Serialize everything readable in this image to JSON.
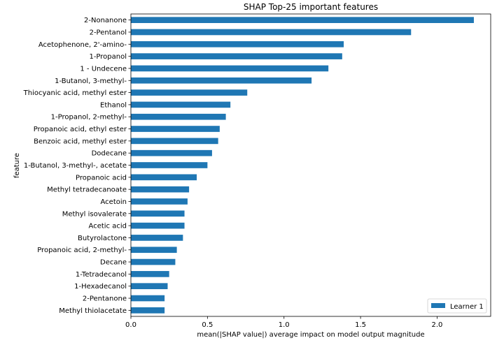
{
  "chart_data": {
    "type": "bar",
    "orientation": "horizontal",
    "title": "SHAP Top-25 important features",
    "xlabel": "mean(|SHAP value|) average impact on model output magnitude",
    "ylabel": "feature",
    "xlim": [
      0,
      2.35
    ],
    "xticks": [
      "0.0",
      "0.5",
      "1.0",
      "1.5",
      "2.0"
    ],
    "xtick_values": [
      0,
      0.5,
      1.0,
      1.5,
      2.0
    ],
    "grid": false,
    "legend_position": "lower-right",
    "color": "#1f77b4",
    "categories": [
      "2-Nonanone",
      "2-Pentanol",
      "Acetophenone, 2'-amino-",
      "1-Propanol",
      "1 - Undecene",
      "1-Butanol, 3-methyl-",
      "Thiocyanic acid, methyl ester",
      "Ethanol",
      "1-Propanol, 2-methyl-",
      "Propanoic acid, ethyl ester",
      "Benzoic acid, methyl ester",
      "Dodecane",
      "1-Butanol, 3-methyl-, acetate",
      "Propanoic acid",
      "Methyl tetradecanoate",
      "Acetoin",
      "Methyl isovalerate",
      "Acetic acid",
      "Butyrolactone",
      "Propanoic acid, 2-methyl-",
      "Decane",
      "1-Tetradecanol",
      "1-Hexadecanol",
      "2-Pentanone",
      "Methyl thiolacetate"
    ],
    "series": [
      {
        "name": "Learner 1",
        "values": [
          2.24,
          1.83,
          1.39,
          1.38,
          1.29,
          1.18,
          0.76,
          0.65,
          0.62,
          0.58,
          0.57,
          0.53,
          0.5,
          0.43,
          0.38,
          0.37,
          0.35,
          0.35,
          0.34,
          0.3,
          0.29,
          0.25,
          0.24,
          0.22,
          0.22
        ]
      }
    ]
  }
}
